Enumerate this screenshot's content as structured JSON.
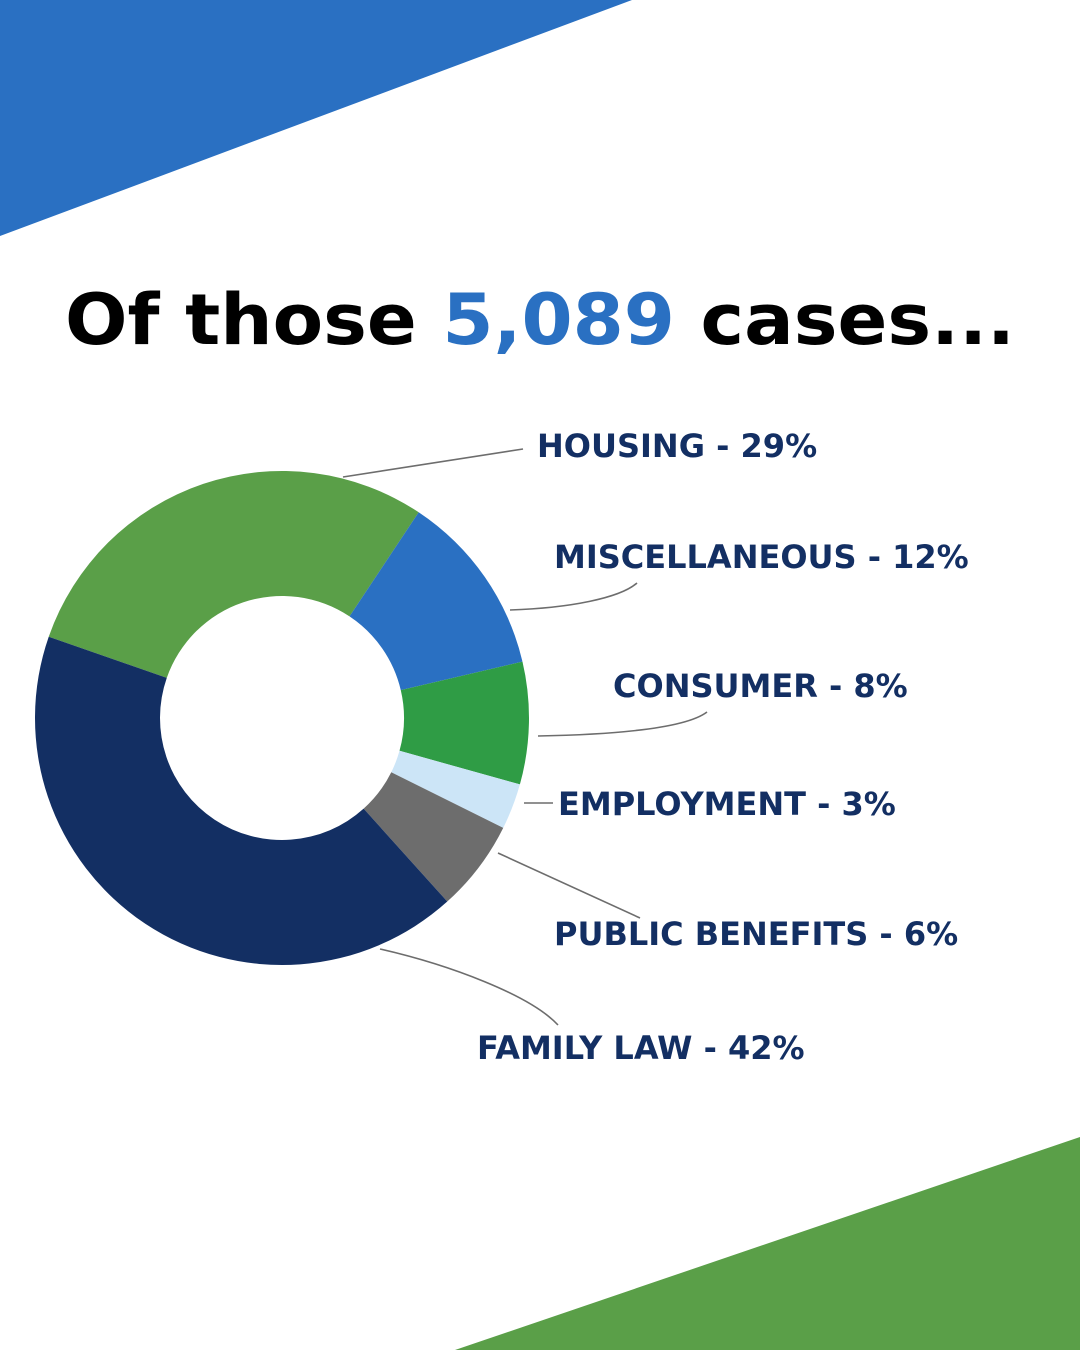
{
  "title": {
    "start": "Of those",
    "number": "5,089",
    "end": "cases..."
  },
  "chart_data": {
    "type": "donut",
    "categories": [
      "HOUSING - 29%",
      "MISCELLANEOUS - 12%",
      "CONSUMER - 8%",
      "EMPLOYMENT - 3%",
      "PUBLIC BENEFITS - 6%",
      "FAMILY LAW - 42%"
    ],
    "values": [
      29,
      12,
      8,
      3,
      6,
      42
    ],
    "colors": [
      "#5a9f48",
      "#2a70c2",
      "#2f9c45",
      "#cce5f7",
      "#6d6d6d",
      "#132f63"
    ]
  }
}
